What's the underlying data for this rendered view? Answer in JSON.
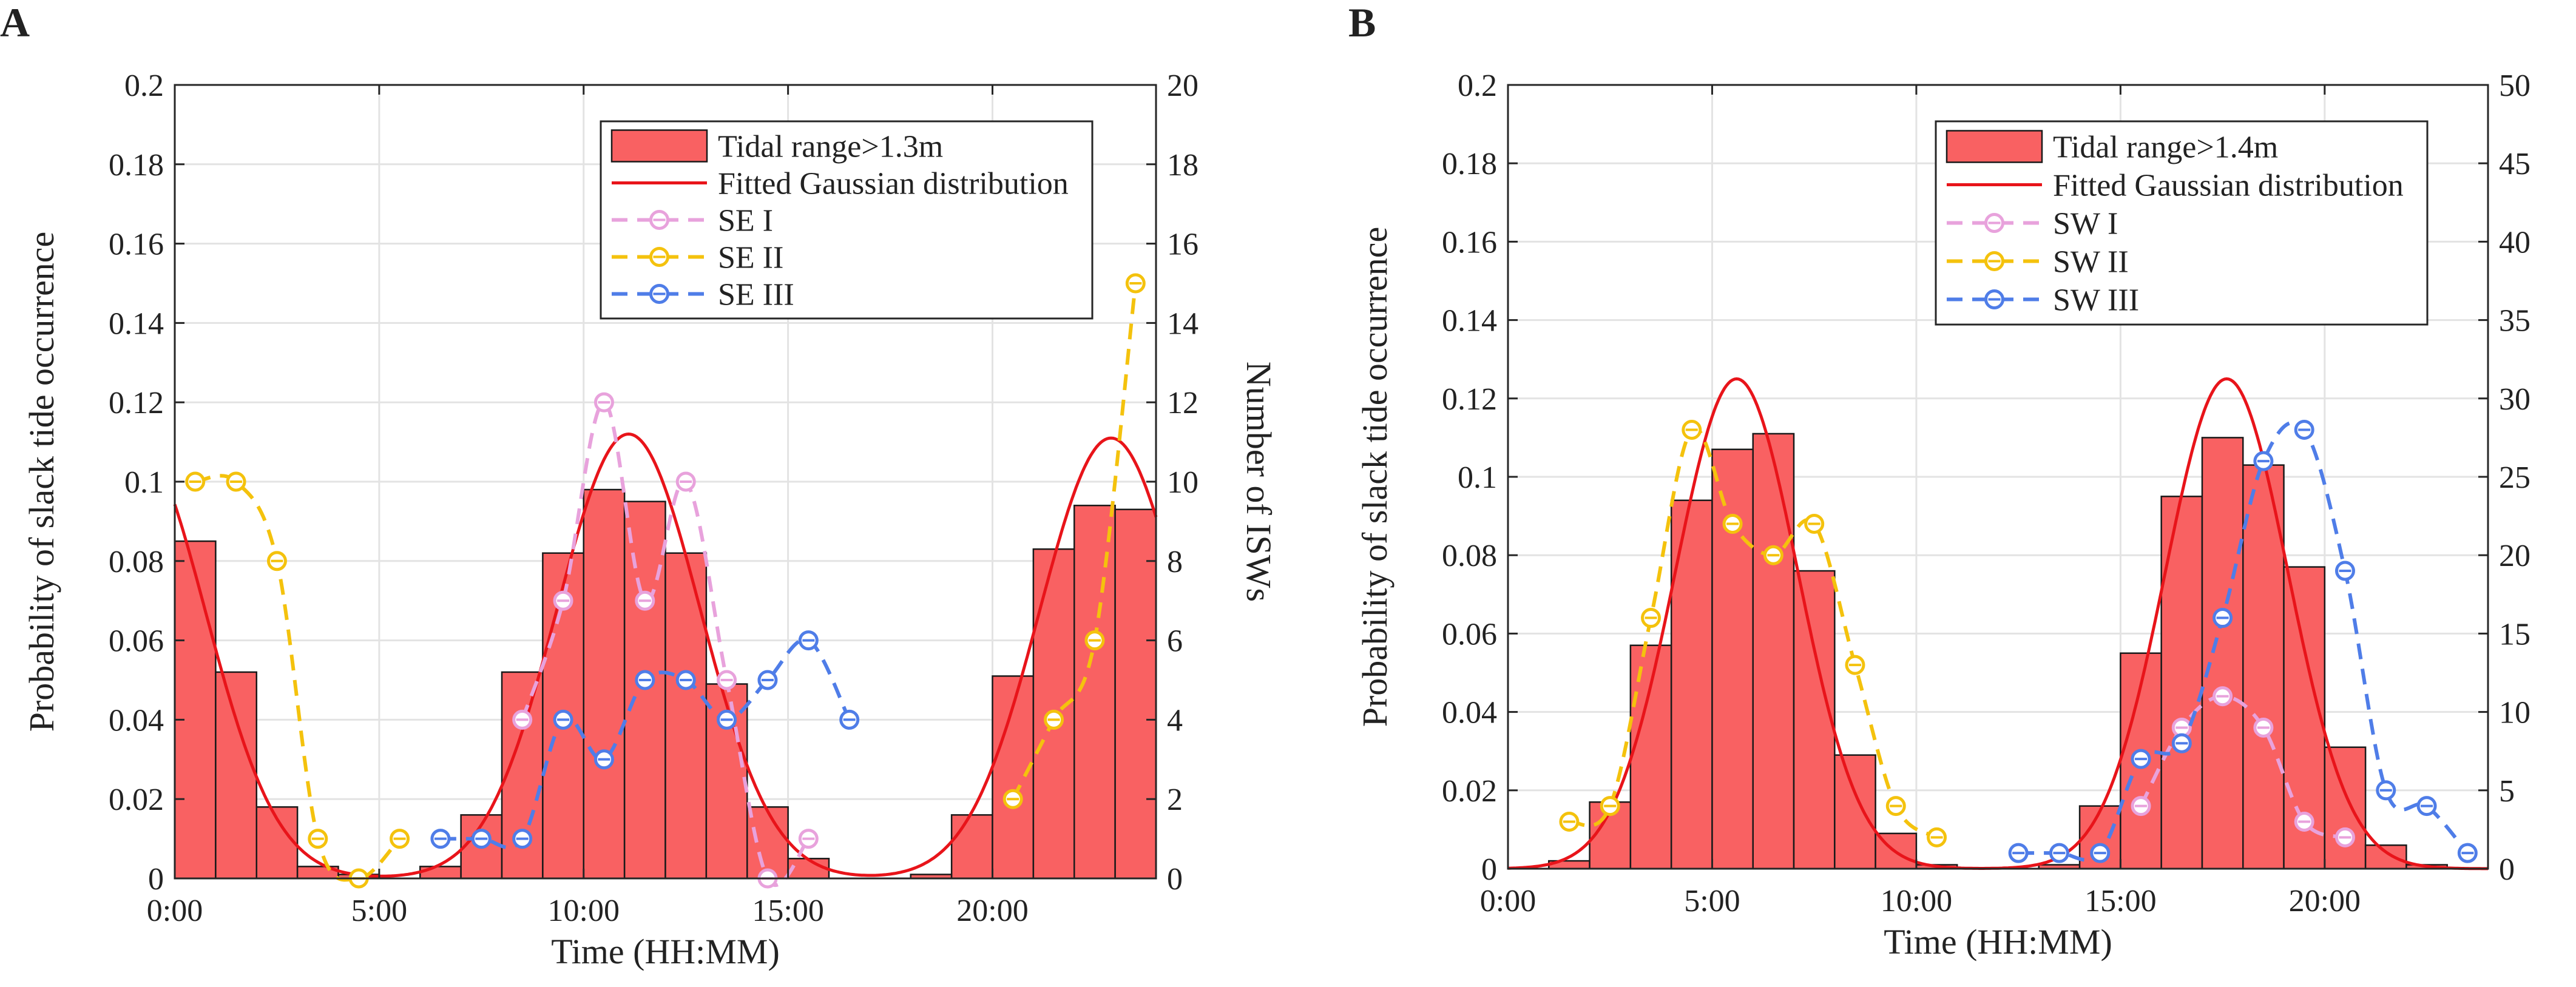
{
  "figure": {
    "panel_labels": [
      "A",
      "B"
    ]
  },
  "colors": {
    "bar_fill": "#f96162",
    "bar_edge": "#1a1a1a",
    "gaussian": "#e8141a",
    "series_I": "#e8a2dc",
    "series_II": "#f4c20d",
    "series_III": "#4f7de8",
    "grid": "#e3e3e3",
    "axis": "#262626"
  },
  "chart_data": [
    {
      "panel": "A",
      "type": "bar",
      "xlabel": "Time (HH:MM)",
      "ylabel": "Probability of slack tide occurrence",
      "ylabel_right": "Number of ISWs",
      "xlim": [
        0,
        24
      ],
      "ylim": [
        0,
        0.2
      ],
      "ylim_right": [
        0,
        20
      ],
      "x_ticks": [
        0,
        5,
        10,
        15,
        20
      ],
      "x_tick_labels": [
        "0:00",
        "5:00",
        "10:00",
        "15:00",
        "20:00"
      ],
      "y_ticks": [
        0,
        0.02,
        0.04,
        0.06,
        0.08,
        0.1,
        0.12,
        0.14,
        0.16,
        0.18,
        0.2
      ],
      "y_tick_labels": [
        "0",
        "0.02",
        "0.04",
        "0.06",
        "0.08",
        "0.1",
        "0.12",
        "0.14",
        "0.16",
        "0.18",
        "0.2"
      ],
      "y2_ticks": [
        0,
        2,
        4,
        6,
        8,
        10,
        12,
        14,
        16,
        18,
        20
      ],
      "y2_tick_labels": [
        "0",
        "2",
        "4",
        "6",
        "8",
        "10",
        "12",
        "14",
        "16",
        "18",
        "20"
      ],
      "grid": true,
      "legend_position": "top-right",
      "histogram": {
        "name": "Tidal range>1.3m",
        "bin_width": 1,
        "bin_starts": [
          0,
          1,
          2,
          3,
          4,
          5,
          6,
          7,
          8,
          9,
          10,
          11,
          12,
          13,
          14,
          15,
          16,
          17,
          18,
          19,
          20,
          21,
          22,
          23
        ],
        "values": [
          0.085,
          0.052,
          0.018,
          0.003,
          0.001,
          0.0,
          0.003,
          0.016,
          0.052,
          0.082,
          0.098,
          0.095,
          0.082,
          0.049,
          0.018,
          0.005,
          0.0,
          0.0,
          0.001,
          0.016,
          0.051,
          0.083,
          0.094,
          0.093
        ]
      },
      "gaussian": {
        "name": "Fitted Gaussian distribution",
        "components": [
          {
            "mean": 11.1,
            "sd": 1.75,
            "peak": 0.112
          },
          {
            "mean": 22.9,
            "sd": 1.75,
            "peak": 0.111
          },
          {
            "mean": -1.0,
            "sd": 1.75,
            "peak": 0.111
          }
        ]
      },
      "series": [
        {
          "name": "SE I",
          "x": [
            8.5,
            9.5,
            10.5,
            11.5,
            12.5,
            13.5,
            14.5,
            15.5
          ],
          "values": [
            4,
            7,
            12,
            7,
            10,
            5,
            0,
            1
          ]
        },
        {
          "name": "SE II",
          "x": [
            0.5,
            1.5,
            2.5,
            3.5,
            4.5,
            5.5,
            20.5,
            21.5,
            22.5,
            23.5
          ],
          "values": [
            10,
            10,
            8,
            1,
            0,
            1,
            2,
            4,
            6,
            15
          ]
        },
        {
          "name": "SE III",
          "x": [
            6.5,
            7.5,
            8.5,
            9.5,
            10.5,
            11.5,
            12.5,
            13.5,
            14.5,
            15.5,
            16.5
          ],
          "values": [
            1,
            1,
            1,
            4,
            3,
            5,
            5,
            4,
            5,
            6,
            4
          ]
        }
      ]
    },
    {
      "panel": "B",
      "type": "bar",
      "xlabel": "Time (HH:MM)",
      "ylabel": "Probability of slack tide occurrence",
      "ylabel_right": "Number of ISWs",
      "xlim": [
        0,
        24
      ],
      "ylim": [
        0,
        0.2
      ],
      "ylim_right": [
        0,
        50
      ],
      "x_ticks": [
        0,
        5,
        10,
        15,
        20
      ],
      "x_tick_labels": [
        "0:00",
        "5:00",
        "10:00",
        "15:00",
        "20:00"
      ],
      "y_ticks": [
        0,
        0.02,
        0.04,
        0.06,
        0.08,
        0.1,
        0.12,
        0.14,
        0.16,
        0.18,
        0.2
      ],
      "y_tick_labels": [
        "0",
        "0.02",
        "0.04",
        "0.06",
        "0.08",
        "0.1",
        "0.12",
        "0.14",
        "0.16",
        "0.18",
        "0.2"
      ],
      "y2_ticks": [
        0,
        5,
        10,
        15,
        20,
        25,
        30,
        35,
        40,
        45,
        50
      ],
      "y2_tick_labels": [
        "0",
        "5",
        "10",
        "15",
        "20",
        "25",
        "30",
        "35",
        "40",
        "45",
        "50"
      ],
      "grid": true,
      "legend_position": "top-right",
      "histogram": {
        "name": "Tidal range>1.4m",
        "bin_width": 1,
        "bin_starts": [
          0,
          1,
          2,
          3,
          4,
          5,
          6,
          7,
          8,
          9,
          10,
          11,
          12,
          13,
          14,
          15,
          16,
          17,
          18,
          19,
          20,
          21,
          22,
          23
        ],
        "values": [
          0.0,
          0.002,
          0.017,
          0.057,
          0.094,
          0.107,
          0.111,
          0.076,
          0.029,
          0.009,
          0.001,
          0.0,
          0.0,
          0.001,
          0.016,
          0.055,
          0.095,
          0.11,
          0.103,
          0.077,
          0.031,
          0.006,
          0.001,
          0.0
        ]
      },
      "gaussian": {
        "name": "Fitted Gaussian distribution",
        "components": [
          {
            "mean": 5.6,
            "sd": 1.5,
            "peak": 0.125
          },
          {
            "mean": 17.6,
            "sd": 1.5,
            "peak": 0.125
          }
        ]
      },
      "series": [
        {
          "name": "SW I",
          "x": [
            15.5,
            16.5,
            17.5,
            18.5,
            19.5,
            20.5
          ],
          "values": [
            4,
            9,
            11,
            9,
            3,
            2
          ]
        },
        {
          "name": "SW II",
          "x": [
            1.5,
            2.5,
            3.5,
            4.5,
            5.5,
            6.5,
            7.5,
            8.5,
            9.5,
            10.5
          ],
          "values": [
            3,
            4,
            16,
            28,
            22,
            20,
            22,
            13,
            4,
            2
          ]
        },
        {
          "name": "SW III",
          "x": [
            12.5,
            13.5,
            14.5,
            15.5,
            16.5,
            17.5,
            18.5,
            19.5,
            20.5,
            21.5,
            22.5,
            23.5
          ],
          "values": [
            1,
            1,
            1,
            7,
            8,
            16,
            26,
            28,
            19,
            5,
            4,
            1
          ]
        }
      ]
    }
  ]
}
